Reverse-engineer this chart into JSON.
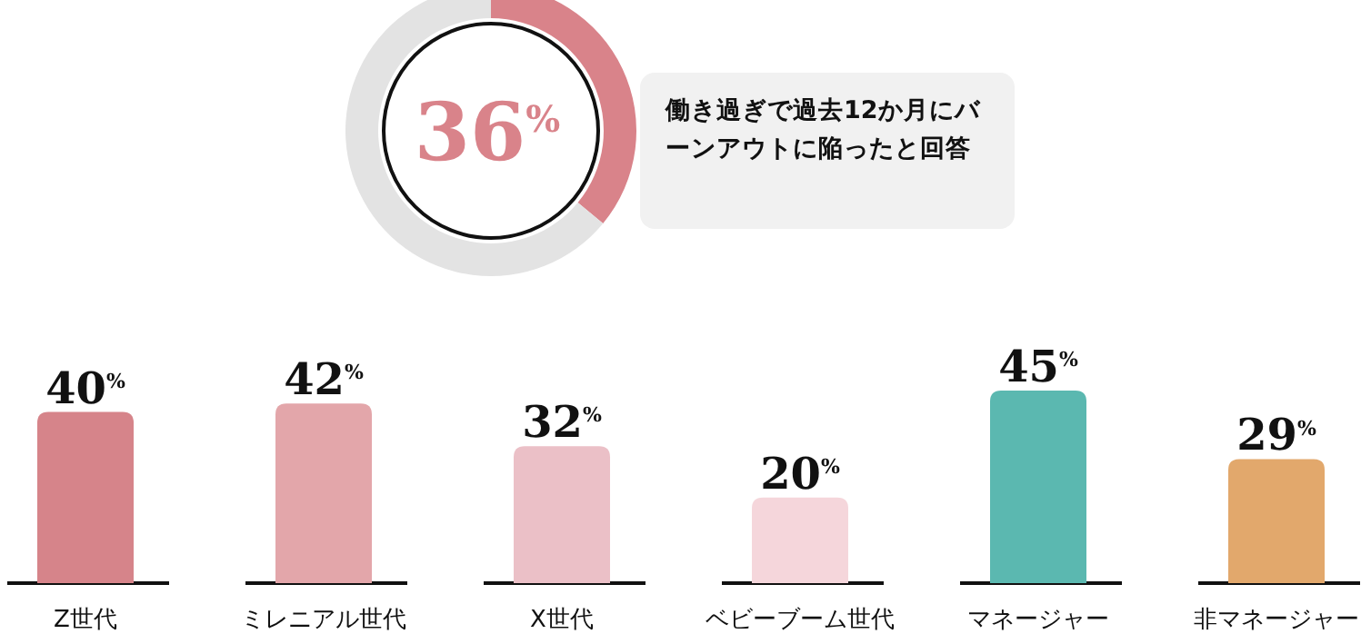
{
  "chart_data": [
    {
      "type": "donut",
      "categories": [
        null,
        null
      ],
      "values": [
        36,
        64
      ],
      "colors": [
        "#d9838a",
        "#e3e3e3"
      ],
      "annotations": [
        "36$^{%}$",
        "働き過ぎで過去12か月にバーンアウトに陥ったと回答"
      ]
    },
    {
      "type": "bar",
      "categories": [
        "Z世代",
        "ミレニアル世代",
        "X世代",
        "ベビーブーム世代",
        "マネージャー",
        "非マネージャー"
      ],
      "values": [
        40,
        42,
        32,
        20,
        45,
        29
      ],
      "colors": [
        "#d6848a",
        "#e3a6aa",
        "#ebc0c7",
        "#f5d6db",
        "#5bb8b0",
        "#e2a86c"
      ],
      "value_labels": [
        "40$^{%}$",
        "42$^{%}$",
        "32$^{%}$",
        "20$^{%}$",
        "45$^{%}$",
        "29$^{%}$"
      ]
    }
  ]
}
